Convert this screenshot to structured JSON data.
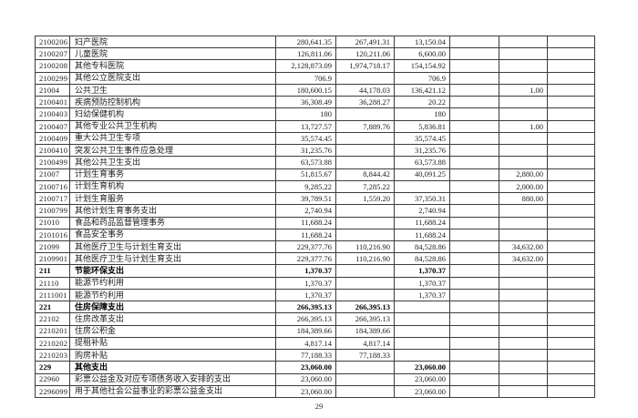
{
  "page": {
    "number": "29"
  },
  "table": {
    "rows": [
      {
        "code": "2100206",
        "name": "妇产医院",
        "c1": "280,641.35",
        "c2": "267,491.31",
        "c3": "13,150.04",
        "c4": "",
        "c5": "",
        "c6": "",
        "bold": false
      },
      {
        "code": "2100207",
        "name": "儿童医院",
        "c1": "126,811.06",
        "c2": "120,211.06",
        "c3": "6,600.00",
        "c4": "",
        "c5": "",
        "c6": "",
        "bold": false
      },
      {
        "code": "2100208",
        "name": "其他专科医院",
        "c1": "2,128,873.09",
        "c2": "1,974,718.17",
        "c3": "154,154.92",
        "c4": "",
        "c5": "",
        "c6": "",
        "bold": false
      },
      {
        "code": "2100299",
        "name": "其他公立医院支出",
        "c1": "706.9",
        "c2": "",
        "c3": "706.9",
        "c4": "",
        "c5": "",
        "c6": "",
        "bold": false
      },
      {
        "code": "21004",
        "name": "公共卫生",
        "c1": "180,600.15",
        "c2": "44,178.03",
        "c3": "136,421.12",
        "c4": "",
        "c5": "1.00",
        "c6": "",
        "bold": false
      },
      {
        "code": "2100401",
        "name": "疾病预防控制机构",
        "c1": "36,308.49",
        "c2": "36,288.27",
        "c3": "20.22",
        "c4": "",
        "c5": "",
        "c6": "",
        "bold": false
      },
      {
        "code": "2100403",
        "name": "妇幼保健机构",
        "c1": "180",
        "c2": "",
        "c3": "180",
        "c4": "",
        "c5": "",
        "c6": "",
        "bold": false
      },
      {
        "code": "2100407",
        "name": "其他专业公共卫生机构",
        "c1": "13,727.57",
        "c2": "7,889.76",
        "c3": "5,836.81",
        "c4": "",
        "c5": "1.00",
        "c6": "",
        "bold": false
      },
      {
        "code": "2100409",
        "name": "重大公共卫生专项",
        "c1": "35,574.45",
        "c2": "",
        "c3": "35,574.45",
        "c4": "",
        "c5": "",
        "c6": "",
        "bold": false
      },
      {
        "code": "2100410",
        "name": "突发公共卫生事件应急处理",
        "c1": "31,235.76",
        "c2": "",
        "c3": "31,235.76",
        "c4": "",
        "c5": "",
        "c6": "",
        "bold": false
      },
      {
        "code": "2100499",
        "name": "其他公共卫生支出",
        "c1": "63,573.88",
        "c2": "",
        "c3": "63,573.88",
        "c4": "",
        "c5": "",
        "c6": "",
        "bold": false
      },
      {
        "code": "21007",
        "name": "计划生育事务",
        "c1": "51,815.67",
        "c2": "8,844.42",
        "c3": "40,091.25",
        "c4": "",
        "c5": "2,880.00",
        "c6": "",
        "bold": false
      },
      {
        "code": "2100716",
        "name": "计划生育机构",
        "c1": "9,285.22",
        "c2": "7,285.22",
        "c3": "",
        "c4": "",
        "c5": "2,000.00",
        "c6": "",
        "bold": false
      },
      {
        "code": "2100717",
        "name": "计划生育服务",
        "c1": "39,789.51",
        "c2": "1,559.20",
        "c3": "37,350.31",
        "c4": "",
        "c5": "880.00",
        "c6": "",
        "bold": false
      },
      {
        "code": "2100799",
        "name": "其他计划生育事务支出",
        "c1": "2,740.94",
        "c2": "",
        "c3": "2,740.94",
        "c4": "",
        "c5": "",
        "c6": "",
        "bold": false
      },
      {
        "code": "21010",
        "name": "食品和药品监督管理事务",
        "c1": "11,688.24",
        "c2": "",
        "c3": "11,688.24",
        "c4": "",
        "c5": "",
        "c6": "",
        "bold": false
      },
      {
        "code": "2101016",
        "name": "食品安全事务",
        "c1": "11,688.24",
        "c2": "",
        "c3": "11,688.24",
        "c4": "",
        "c5": "",
        "c6": "",
        "bold": false
      },
      {
        "code": "21099",
        "name": "其他医疗卫生与计划生育支出",
        "c1": "229,377.76",
        "c2": "110,216.90",
        "c3": "84,528.86",
        "c4": "",
        "c5": "34,632.00",
        "c6": "",
        "bold": false
      },
      {
        "code": "2109901",
        "name": "其他医疗卫生与计划生育支出",
        "c1": "229,377.76",
        "c2": "110,216.90",
        "c3": "84,528.86",
        "c4": "",
        "c5": "34,632.00",
        "c6": "",
        "bold": false
      },
      {
        "code": "211",
        "name": "节能环保支出",
        "c1": "1,370.37",
        "c2": "",
        "c3": "1,370.37",
        "c4": "",
        "c5": "",
        "c6": "",
        "bold": true
      },
      {
        "code": "21110",
        "name": "能源节约利用",
        "c1": "1,370.37",
        "c2": "",
        "c3": "1,370.37",
        "c4": "",
        "c5": "",
        "c6": "",
        "bold": false
      },
      {
        "code": "2111001",
        "name": "能源节约利用",
        "c1": "1,370.37",
        "c2": "",
        "c3": "1,370.37",
        "c4": "",
        "c5": "",
        "c6": "",
        "bold": false
      },
      {
        "code": "221",
        "name": "住房保障支出",
        "c1": "266,395.13",
        "c2": "266,395.13",
        "c3": "",
        "c4": "",
        "c5": "",
        "c6": "",
        "bold": true
      },
      {
        "code": "22102",
        "name": "住房改革支出",
        "c1": "266,395.13",
        "c2": "266,395.13",
        "c3": "",
        "c4": "",
        "c5": "",
        "c6": "",
        "bold": false
      },
      {
        "code": "2210201",
        "name": "住房公积金",
        "c1": "184,389.66",
        "c2": "184,389.66",
        "c3": "",
        "c4": "",
        "c5": "",
        "c6": "",
        "bold": false
      },
      {
        "code": "2210202",
        "name": "提租补贴",
        "c1": "4,817.14",
        "c2": "4,817.14",
        "c3": "",
        "c4": "",
        "c5": "",
        "c6": "",
        "bold": false
      },
      {
        "code": "2210203",
        "name": "购房补贴",
        "c1": "77,188.33",
        "c2": "77,188.33",
        "c3": "",
        "c4": "",
        "c5": "",
        "c6": "",
        "bold": false
      },
      {
        "code": "229",
        "name": "其他支出",
        "c1": "23,060.00",
        "c2": "",
        "c3": "23,060.00",
        "c4": "",
        "c5": "",
        "c6": "",
        "bold": true
      },
      {
        "code": "22960",
        "name": "彩票公益金及对应专项债务收入安排的支出",
        "c1": "23,060.00",
        "c2": "",
        "c3": "23,060.00",
        "c4": "",
        "c5": "",
        "c6": "",
        "bold": false
      },
      {
        "code": "2296099",
        "name": "用于其他社会公益事业的彩票公益金支出",
        "c1": "23,060.00",
        "c2": "",
        "c3": "23,060.00",
        "c4": "",
        "c5": "",
        "c6": "",
        "bold": false
      }
    ]
  }
}
